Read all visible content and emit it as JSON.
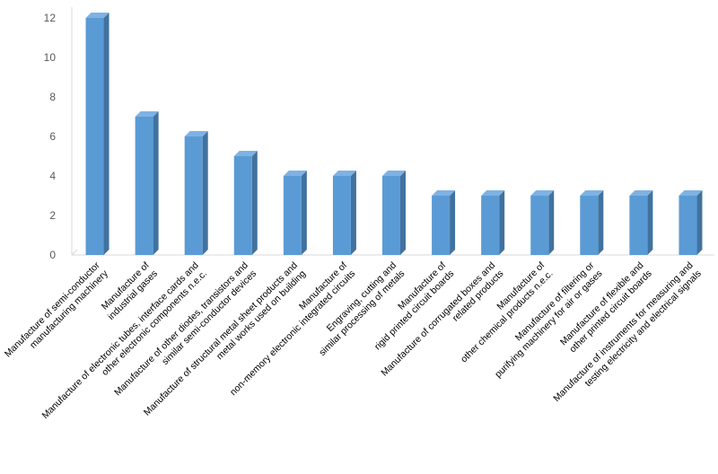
{
  "chart_data": {
    "type": "bar",
    "categories": [
      [
        "Manufacture of semi-conductor",
        "manufacturing machinery"
      ],
      [
        "Manufacture of",
        "industrial gases"
      ],
      [
        "Manufacture of electronic tubes, interface cards and",
        "other electronic components n.e.c."
      ],
      [
        "Manufacture of other diodes, transistors and",
        "similar semi-conductor devices"
      ],
      [
        "Manufacture of structural metal sheet products and",
        "metal works used on building"
      ],
      [
        "Manufacture of",
        "non-memory electronic integrated circuits"
      ],
      [
        "Engraving, cutting and",
        "similar processing of metals"
      ],
      [
        "Manufacture of",
        "rigid printed circuit boards"
      ],
      [
        "Manufacture of corrugated boxes and",
        "related products"
      ],
      [
        "Manufacture of",
        "other chemical products n.e.c."
      ],
      [
        "Manufacture of filtering or",
        "purifying machinery for air or gases"
      ],
      [
        "Manufacture of flexible and",
        "other printed circuit boards"
      ],
      [
        "Manufacture of instruments for measuring and",
        "testing electricity and electrical signals"
      ]
    ],
    "values": [
      12,
      7,
      6,
      5,
      4,
      4,
      4,
      3,
      3,
      3,
      3,
      3,
      3
    ],
    "ylim": [
      0,
      12
    ],
    "yticks": [
      0,
      2,
      4,
      6,
      8,
      10,
      12
    ],
    "grid": false,
    "style": "3d-bar",
    "colors": {
      "front": "#5b9bd5",
      "side": "#41729f",
      "top": "#7eb2e3",
      "axis": "#d9d9d9"
    }
  }
}
